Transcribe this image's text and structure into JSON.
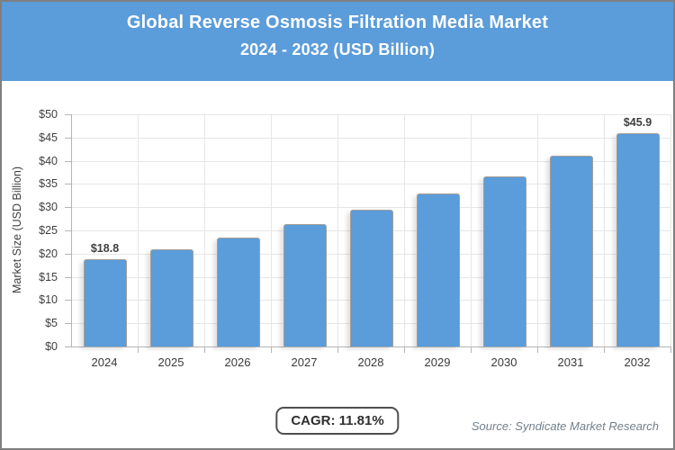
{
  "header": {
    "title_line1": "Global Reverse Osmosis Filtration Media Market",
    "title_line2": "2024 - 2032 (USD Billion)"
  },
  "chart_data": {
    "type": "bar",
    "title": "Global Reverse Osmosis Filtration Media Market 2024 - 2032 (USD Billion)",
    "categories": [
      "2024",
      "2025",
      "2026",
      "2027",
      "2028",
      "2029",
      "2030",
      "2031",
      "2032"
    ],
    "values": [
      18.8,
      21.0,
      23.5,
      26.3,
      29.4,
      32.9,
      36.7,
      41.1,
      45.9
    ],
    "data_labels": [
      "$18.8",
      "",
      "",
      "",
      "",
      "",
      "",
      "",
      "$45.9"
    ],
    "xlabel": "",
    "ylabel": "Market Size (USD Billion)",
    "ylim": [
      0,
      50
    ],
    "y_tick_step": 5,
    "y_tick_labels_top_to_bottom": [
      "$50",
      "$45",
      "$40",
      "$35",
      "$30",
      "$25",
      "$20",
      "$15",
      "$10",
      "$5",
      "$0"
    ],
    "grid": true,
    "legend": "none"
  },
  "footer": {
    "cagr_label": "CAGR: 11.81%",
    "source": "Source: Syndicate Market Research"
  },
  "colors": {
    "accent_blue": "#5B9CDA",
    "bar_border": "#A59E97",
    "grid_line": "#E6E6E6",
    "axis_line": "#B5B5B5",
    "text_dark": "#3F3F3F",
    "source_text": "#72808D",
    "page_border": "#7F7F7F"
  }
}
